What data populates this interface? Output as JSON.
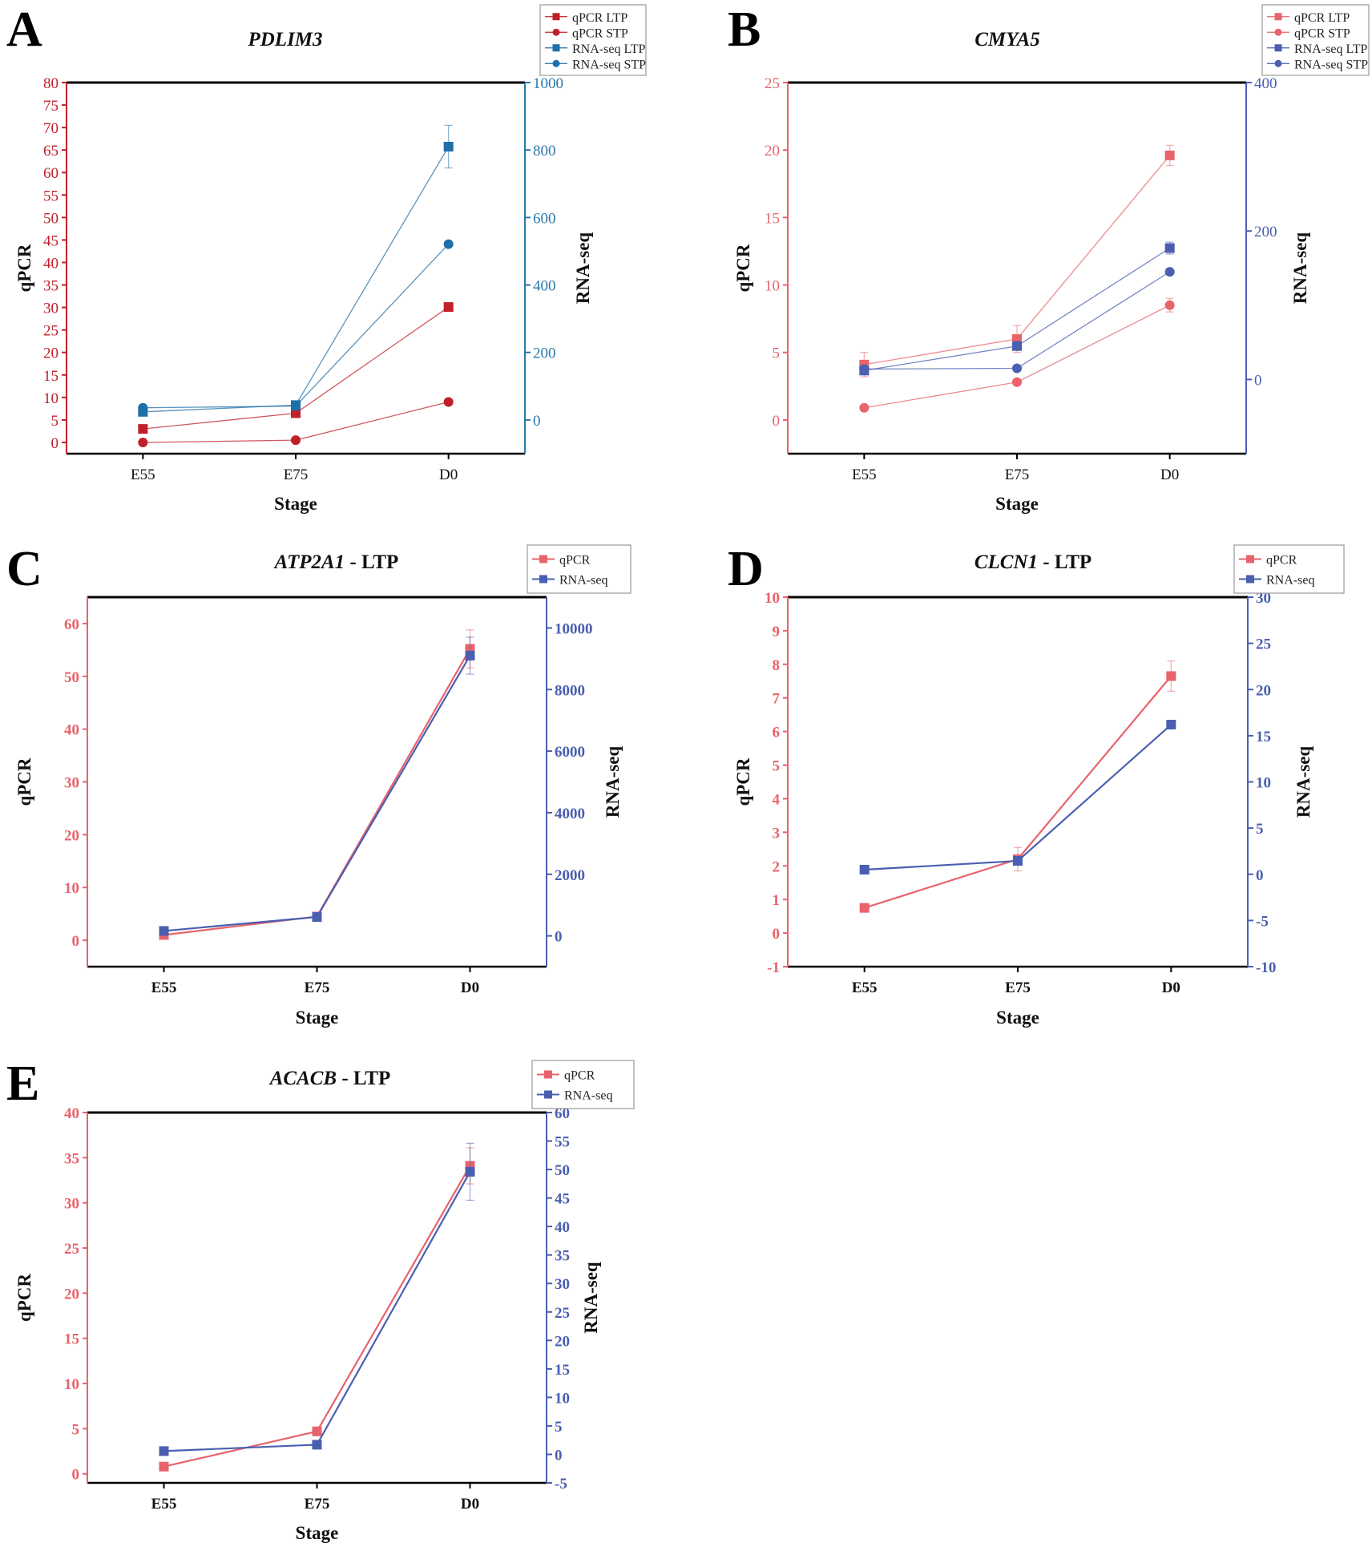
{
  "chart_data": [
    {
      "type": "line",
      "panel": "A",
      "title_gene": "PDLIM3",
      "title_suffix": "",
      "xlabel": "Stage",
      "ylabel": "qPCR",
      "y2label": "RNA-seq",
      "categories": [
        "E55",
        "E75",
        "D0"
      ],
      "ylim": [
        -2.5,
        80
      ],
      "y2lim": [
        -100,
        1000
      ],
      "left_ticks": [
        0,
        5,
        10,
        15,
        20,
        25,
        30,
        35,
        40,
        45,
        50,
        55,
        60,
        65,
        70,
        75,
        80
      ],
      "right_ticks": [
        0,
        200,
        400,
        600,
        800,
        1000
      ],
      "left_color": "#c0202a",
      "right_color": "#2a79aa",
      "legend_placement": "top-right",
      "series": [
        {
          "name": "qPCR LTP",
          "axis": "left",
          "marker": "square",
          "color": "#c0202a",
          "values": [
            3.0,
            6.5,
            30.1
          ],
          "err": [
            0,
            0,
            0
          ]
        },
        {
          "name": "qPCR STP",
          "axis": "left",
          "marker": "circle",
          "color": "#c0202a",
          "values": [
            0.0,
            0.5,
            9.0
          ],
          "err": [
            0,
            0,
            0
          ]
        },
        {
          "name": "RNA-seq LTP",
          "axis": "right",
          "marker": "square",
          "color": "#1f6fa8",
          "values": [
            24,
            44,
            810
          ],
          "err": [
            0,
            0,
            63
          ]
        },
        {
          "name": "RNA-seq STP",
          "axis": "right",
          "marker": "circle",
          "color": "#1f6fa8",
          "values": [
            36,
            41,
            521
          ],
          "err": [
            0,
            0,
            0
          ]
        }
      ]
    },
    {
      "type": "line",
      "panel": "B",
      "title_gene": "CMYA5",
      "title_suffix": "",
      "xlabel": "Stage",
      "ylabel": "qPCR",
      "y2label": "RNA-seq",
      "categories": [
        "E55",
        "E75",
        "D0"
      ],
      "ylim": [
        -2.5,
        25
      ],
      "y2lim": [
        -100,
        400
      ],
      "left_ticks": [
        0,
        5,
        10,
        15,
        20,
        25
      ],
      "right_ticks": [
        0,
        200,
        400
      ],
      "left_color": "#e8636b",
      "right_color": "#4a5fb0",
      "legend_placement": "top-right",
      "series": [
        {
          "name": "qPCR LTP",
          "axis": "left",
          "marker": "square",
          "color": "#e8636b",
          "values": [
            4.1,
            6.0,
            19.6
          ],
          "err": [
            0.9,
            1.0,
            0.75
          ]
        },
        {
          "name": "qPCR STP",
          "axis": "left",
          "marker": "circle",
          "color": "#e8636b",
          "values": [
            0.9,
            2.8,
            8.5
          ],
          "err": [
            0,
            0,
            0.5
          ]
        },
        {
          "name": "RNA-seq LTP",
          "axis": "right",
          "marker": "square",
          "color": "#4a5fb0",
          "values": [
            12,
            45,
            177
          ],
          "err": [
            5,
            5,
            8
          ]
        },
        {
          "name": "RNA-seq STP",
          "axis": "right",
          "marker": "circle",
          "color": "#4a5fb0",
          "values": [
            14,
            15,
            145
          ],
          "err": [
            0,
            0,
            0
          ]
        }
      ]
    },
    {
      "type": "line",
      "panel": "C",
      "title_gene": "ATP2A1",
      "title_suffix": " - LTP",
      "xlabel": "Stage",
      "ylabel": "qPCR",
      "y2label": "RNA-seq",
      "categories": [
        "E55",
        "E75",
        "D0"
      ],
      "ylim": [
        -5,
        65
      ],
      "y2lim": [
        -1000,
        11000
      ],
      "left_ticks": [
        0,
        10,
        20,
        30,
        40,
        50,
        60
      ],
      "right_ticks": [
        0,
        2000,
        4000,
        6000,
        8000,
        10000
      ],
      "left_color": "#e8636b",
      "right_color": "#4a5fb0",
      "legend_placement": "top-right",
      "series": [
        {
          "name": "qPCR",
          "axis": "left",
          "marker": "square",
          "color": "#e8636b",
          "values": [
            1.0,
            4.5,
            55.2
          ],
          "err": [
            0,
            0,
            3.6
          ]
        },
        {
          "name": "RNA-seq",
          "axis": "right",
          "marker": "square",
          "color": "#4a5fb0",
          "values": [
            160,
            614,
            9100
          ],
          "err": [
            0,
            0,
            600
          ]
        }
      ]
    },
    {
      "type": "line",
      "panel": "D",
      "title_gene": "CLCN1",
      "title_suffix": " - LTP",
      "xlabel": "Stage",
      "ylabel": "qPCR",
      "y2label": "RNA-seq",
      "categories": [
        "E55",
        "E75",
        "D0"
      ],
      "ylim": [
        -1,
        10
      ],
      "y2lim": [
        -10,
        30
      ],
      "left_ticks": [
        -1,
        0,
        1,
        2,
        3,
        4,
        5,
        6,
        7,
        8,
        9,
        10
      ],
      "right_ticks": [
        -10,
        -5,
        0,
        5,
        10,
        15,
        20,
        25,
        30
      ],
      "left_color": "#e8636b",
      "right_color": "#4a5fb0",
      "legend_placement": "top-right",
      "series": [
        {
          "name": "qPCR",
          "axis": "left",
          "marker": "square",
          "color": "#e8636b",
          "values": [
            0.75,
            2.2,
            7.65
          ],
          "err": [
            0,
            0.35,
            0.45
          ]
        },
        {
          "name": "RNA-seq",
          "axis": "right",
          "marker": "square",
          "color": "#4a5fb0",
          "values": [
            0.5,
            1.45,
            16.2
          ],
          "err": [
            0,
            0,
            0.4
          ]
        }
      ]
    },
    {
      "type": "line",
      "panel": "E",
      "title_gene": "ACACB",
      "title_suffix": " - LTP",
      "xlabel": "Stage",
      "ylabel": "qPCR",
      "y2label": "RNA-seq",
      "categories": [
        "E55",
        "E75",
        "D0"
      ],
      "ylim": [
        -1,
        40
      ],
      "y2lim": [
        -5,
        60
      ],
      "left_ticks": [
        0,
        5,
        10,
        15,
        20,
        25,
        30,
        35,
        40
      ],
      "right_ticks": [
        -5,
        0,
        5,
        10,
        15,
        20,
        25,
        30,
        35,
        40,
        45,
        50,
        55,
        60
      ],
      "left_color": "#e8636b",
      "right_color": "#4a5fb0",
      "legend_placement": "top-right",
      "series": [
        {
          "name": "qPCR",
          "axis": "left",
          "marker": "square",
          "color": "#e8636b",
          "values": [
            0.8,
            4.7,
            34.1
          ],
          "err": [
            0,
            0,
            2.0
          ]
        },
        {
          "name": "RNA-seq",
          "axis": "right",
          "marker": "square",
          "color": "#4a5fb0",
          "values": [
            0.57,
            1.7,
            49.6
          ],
          "err": [
            0,
            0,
            5.0
          ]
        }
      ]
    }
  ]
}
